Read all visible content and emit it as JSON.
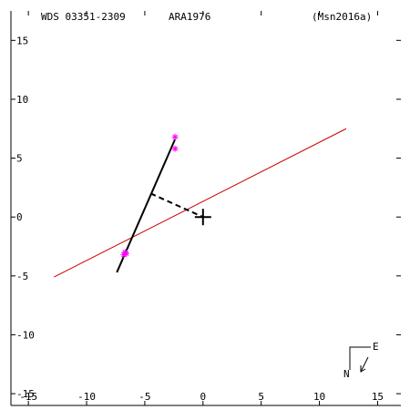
{
  "header": {
    "left": "WDS 03351-2309",
    "center": "ARA1976",
    "right": "(Msn2016a)"
  },
  "chart_data": {
    "type": "scatter",
    "xlim": [
      -16.5,
      17
    ],
    "ylim": [
      -16,
      17.5
    ],
    "x_ticks": [
      -15,
      -10,
      -5,
      0,
      5,
      10,
      15
    ],
    "y_ticks": [
      -15,
      -10,
      -5,
      0,
      5,
      10,
      15
    ],
    "x_tick_labels": [
      "-15",
      "-10",
      "-5",
      "0",
      "5",
      "10",
      "15"
    ],
    "y_tick_labels": [
      "-15",
      "-10",
      "-5",
      "0",
      "5",
      "10",
      "15"
    ],
    "grid": false,
    "primary_marker": [
      0,
      0
    ],
    "orbit_line": [
      [
        -7.4,
        -4.7
      ],
      [
        -2.4,
        6.6
      ]
    ],
    "node_line": [
      [
        -12.8,
        -5.1
      ],
      [
        12.3,
        7.5
      ]
    ],
    "separation_line": [
      [
        -4.5,
        2.0
      ],
      [
        0,
        0
      ]
    ],
    "observations": [
      [
        -2.4,
        6.8
      ],
      [
        -2.4,
        5.8
      ],
      [
        -6.7,
        -3.0
      ],
      [
        -6.6,
        -3.1
      ],
      [
        -6.8,
        -3.2
      ]
    ],
    "colors": {
      "orbit": "#000000",
      "node_line": "#cc0000",
      "observation": "#ff00ff",
      "axes": "#000000"
    },
    "compass": {
      "north": "N",
      "east": "E"
    }
  }
}
